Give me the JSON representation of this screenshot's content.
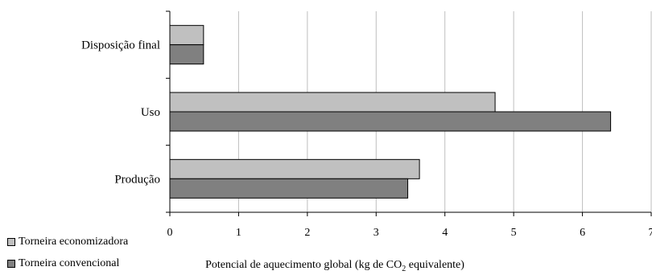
{
  "chart_data": {
    "type": "bar",
    "orientation": "horizontal",
    "categories": [
      "Disposição final",
      "Uso",
      "Produção"
    ],
    "series": [
      {
        "name": "Torneira economizadora",
        "values": [
          0.49,
          4.73,
          3.63
        ],
        "color": "#c0c0c0"
      },
      {
        "name": "Torneira convencional",
        "values": [
          0.49,
          6.41,
          3.46
        ],
        "color": "#808080"
      }
    ],
    "xlabel": {
      "prefix": "Potencial de aquecimento global (kg de CO",
      "subscript": "2",
      "suffix": " equivalente)"
    },
    "xlim": [
      0,
      7
    ],
    "xticks": [
      "0",
      "1",
      "2",
      "3",
      "4",
      "5",
      "6",
      "7"
    ],
    "grid": true,
    "legend_position": "bottom-left"
  }
}
